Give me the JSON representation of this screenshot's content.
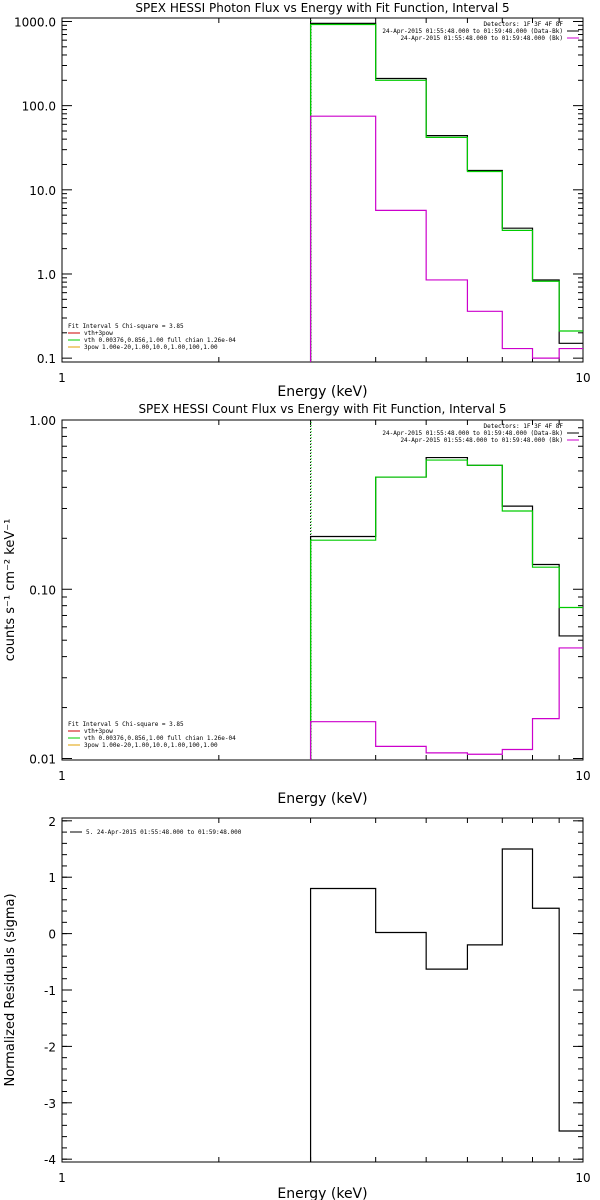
{
  "chart_data": [
    {
      "type": "line",
      "title": "SPEX HESSI Photon Flux vs Energy with Fit Function, Interval 5",
      "xlabel": "Energy (keV)",
      "ylabel": "",
      "xscale": "log",
      "yscale": "log",
      "xlim": [
        1,
        10
      ],
      "ylim": [
        0.09,
        1100
      ],
      "x_ticks": [
        "1",
        "10"
      ],
      "y_ticks": [
        {
          "value": 1000,
          "label": "1000.0"
        },
        {
          "value": 100,
          "label": "100.0"
        },
        {
          "value": 10,
          "label": "10.0"
        },
        {
          "value": 1,
          "label": "1.0"
        },
        {
          "value": 0.1,
          "label": "0.1"
        }
      ],
      "marker_line": {
        "x": 3.0,
        "colors": [
          "#000000",
          "#00cc00"
        ]
      },
      "series": [
        {
          "color": "#000000",
          "edges": [
            3.0,
            4.0,
            5.0,
            6.0,
            7.0,
            8.0,
            9.0,
            10.0
          ],
          "values": [
            950,
            210,
            44,
            17,
            3.5,
            0.85,
            0.15
          ]
        },
        {
          "color": "#00cc00",
          "edges": [
            3.0,
            4.0,
            5.0,
            6.0,
            7.0,
            8.0,
            9.0,
            10.0
          ],
          "values": [
            920,
            200,
            42,
            16.5,
            3.3,
            0.82,
            0.21
          ]
        },
        {
          "color": "#cc00cc",
          "edges": [
            3.0,
            4.0,
            5.0,
            6.0,
            7.0,
            8.0,
            9.0,
            10.0
          ],
          "values": [
            75,
            5.7,
            0.85,
            0.36,
            0.13,
            0.1,
            0.13
          ]
        }
      ],
      "legend_top": {
        "position": "top-right",
        "lines": [
          {
            "text": "Detectors: 1F 3F 4F 8F",
            "color": ""
          },
          {
            "text": "24-Apr-2015 01:55:48.000 to 01:59:48.000 (Data-Bk)",
            "color": "#000000"
          },
          {
            "text": "24-Apr-2015 01:55:48.000 to 01:59:48.000 (Bk)",
            "color": "#cc00cc"
          }
        ]
      },
      "legend_bottom": {
        "position": "bottom-left",
        "header": "Fit Interval 5   Chi-square = 3.85",
        "lines": [
          {
            "text": "vth+3pow",
            "color": "#cc0000"
          },
          {
            "text": "vth 0.00376,0.856,1.00  full chian 1.26e-04",
            "color": "#00cc00"
          },
          {
            "text": "3pow 1.00e-20,1.00,10.0,1.00,100,1.00",
            "color": "#e0a000"
          }
        ]
      }
    },
    {
      "type": "line",
      "title": "SPEX HESSI Count Flux vs Energy with Fit Function, Interval 5",
      "xlabel": "Energy (keV)",
      "ylabel": "counts s⁻¹ cm⁻² keV⁻¹",
      "xscale": "log",
      "yscale": "log",
      "xlim": [
        1,
        10
      ],
      "ylim": [
        0.0098,
        1.0
      ],
      "x_ticks": [
        "1",
        "10"
      ],
      "y_ticks": [
        {
          "value": 1.0,
          "label": "1.00"
        },
        {
          "value": 0.1,
          "label": "0.10"
        },
        {
          "value": 0.01,
          "label": "0.01"
        }
      ],
      "marker_line": {
        "x": 3.0,
        "colors": [
          "#000000",
          "#00cc00"
        ]
      },
      "series": [
        {
          "color": "#000000",
          "edges": [
            3.0,
            4.0,
            5.0,
            6.0,
            7.0,
            8.0,
            9.0,
            10.0
          ],
          "values": [
            0.205,
            0.46,
            0.6,
            0.54,
            0.31,
            0.14,
            0.053
          ]
        },
        {
          "color": "#00cc00",
          "edges": [
            3.0,
            4.0,
            5.0,
            6.0,
            7.0,
            8.0,
            9.0,
            10.0
          ],
          "values": [
            0.195,
            0.46,
            0.58,
            0.54,
            0.29,
            0.135,
            0.078
          ]
        },
        {
          "color": "#cc00cc",
          "edges": [
            3.0,
            4.0,
            5.0,
            6.0,
            7.0,
            8.0,
            9.0,
            10.0
          ],
          "values": [
            0.0165,
            0.0118,
            0.0108,
            0.0106,
            0.0113,
            0.0172,
            0.045
          ]
        }
      ],
      "legend_top": {
        "position": "top-right",
        "lines": [
          {
            "text": "Detectors: 1F 3F 4F 8F",
            "color": ""
          },
          {
            "text": "24-Apr-2015 01:55:48.000 to 01:59:48.000 (Data-Bk)",
            "color": "#000000"
          },
          {
            "text": "24-Apr-2015 01:55:48.000 to 01:59:48.000 (Bk)",
            "color": "#cc00cc"
          }
        ]
      },
      "legend_bottom": {
        "position": "bottom-left",
        "header": "Fit Interval 5   Chi-square = 3.85",
        "lines": [
          {
            "text": "vth+3pow",
            "color": "#cc0000"
          },
          {
            "text": "vth 0.00376,0.856,1.00  full chian 1.26e-04",
            "color": "#00cc00"
          },
          {
            "text": "3pow 1.00e-20,1.00,10.0,1.00,100,1.00",
            "color": "#e0a000"
          }
        ]
      }
    },
    {
      "type": "line",
      "title": "",
      "xlabel": "Energy (keV)",
      "ylabel": "Normalized Residuals (sigma)",
      "xscale": "log",
      "yscale": "linear",
      "xlim": [
        1,
        10
      ],
      "ylim": [
        -4.05,
        2.05
      ],
      "x_ticks": [
        "1",
        "10"
      ],
      "y_ticks": [
        {
          "value": 2,
          "label": "2"
        },
        {
          "value": 1,
          "label": "1"
        },
        {
          "value": 0,
          "label": "0"
        },
        {
          "value": -1,
          "label": "-1"
        },
        {
          "value": -2,
          "label": "-2"
        },
        {
          "value": -3,
          "label": "-3"
        },
        {
          "value": -4,
          "label": "-4"
        }
      ],
      "series": [
        {
          "color": "#000000",
          "edges": [
            3.0,
            4.0,
            5.0,
            6.0,
            7.0,
            8.0,
            9.0,
            10.0
          ],
          "values": [
            0.8,
            0.02,
            -0.63,
            -0.2,
            1.5,
            0.45,
            -3.5
          ]
        }
      ],
      "legend_top": {
        "position": "top-left",
        "lines": [
          {
            "text": "5. 24-Apr-2015 01:55:48.000 to 01:59:48.000",
            "color": "#000000"
          }
        ]
      }
    }
  ]
}
